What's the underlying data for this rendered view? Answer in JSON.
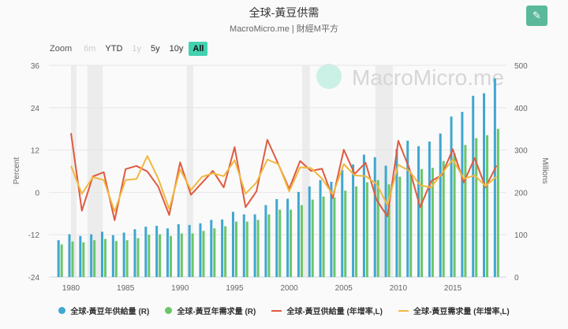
{
  "header": {
    "title": "全球-黃豆供需",
    "subtitle": "MacroMicro.me | 財經M平方",
    "edit_icon": "pencil-icon"
  },
  "zoom": {
    "label": "Zoom",
    "buttons": [
      {
        "label": "6m",
        "disabled": true
      },
      {
        "label": "YTD",
        "disabled": false
      },
      {
        "label": "1y",
        "disabled": true
      },
      {
        "label": "5y",
        "disabled": false
      },
      {
        "label": "10y",
        "disabled": false
      },
      {
        "label": "All",
        "active": true
      }
    ]
  },
  "watermark": "MacroMicro.me",
  "chart_data": {
    "type": "bar+line",
    "title": "全球-黃豆供需",
    "x": [
      1979,
      1980,
      1981,
      1982,
      1983,
      1984,
      1985,
      1986,
      1987,
      1988,
      1989,
      1990,
      1991,
      1992,
      1993,
      1994,
      1995,
      1996,
      1997,
      1998,
      1999,
      2000,
      2001,
      2002,
      2003,
      2004,
      2005,
      2006,
      2007,
      2008,
      2009,
      2010,
      2011,
      2012,
      2013,
      2014,
      2015,
      2016,
      2017,
      2018,
      2019
    ],
    "x_ticks": [
      "1980",
      "1985",
      "1990",
      "1995",
      "2000",
      "2005",
      "2010",
      "2015"
    ],
    "left_axis": {
      "label": "Percent",
      "range": [
        -24,
        36
      ],
      "ticks": [
        "36",
        "24",
        "12",
        "0",
        "-12",
        "-24"
      ]
    },
    "right_axis": {
      "label": "Millions",
      "range": [
        0,
        500
      ],
      "ticks": [
        "500",
        "400",
        "300",
        "200",
        "100",
        "0"
      ]
    },
    "grid": true,
    "legend_position": "bottom",
    "recession_bands": [
      [
        1980.0,
        1980.5
      ],
      [
        1981.5,
        1982.9
      ],
      [
        1990.6,
        1991.2
      ],
      [
        2001.2,
        2001.9
      ],
      [
        2007.9,
        2009.5
      ]
    ],
    "series": [
      {
        "name": "全球-黃豆年供給量 (R)",
        "type": "bar",
        "axis": "right",
        "color": "#3fa7d0",
        "values": [
          87,
          101,
          97,
          101,
          107,
          99,
          105,
          113,
          119,
          121,
          115,
          125,
          123,
          127,
          135,
          136,
          154,
          148,
          148,
          170,
          184,
          185,
          201,
          214,
          229,
          225,
          253,
          266,
          289,
          283,
          263,
          302,
          322,
          309,
          320,
          339,
          379,
          390,
          428,
          434,
          469
        ]
      },
      {
        "name": "全球-黃豆年需求量 (R)",
        "type": "bar",
        "axis": "right",
        "color": "#6cc56a",
        "values": [
          77,
          84,
          82,
          87,
          90,
          85,
          87,
          92,
          100,
          101,
          97,
          103,
          103,
          109,
          115,
          120,
          131,
          131,
          135,
          148,
          159,
          159,
          170,
          183,
          190,
          188,
          204,
          214,
          224,
          229,
          219,
          237,
          247,
          255,
          258,
          274,
          292,
          312,
          328,
          335,
          350
        ]
      },
      {
        "name": "全球-黃豆供給量 (年增率,L)",
        "type": "line",
        "axis": "left",
        "color": "#e05a3f",
        "values": [
          null,
          16.8,
          -5.2,
          4.5,
          5.7,
          -7.9,
          6.6,
          7.5,
          5.9,
          1.6,
          -6.4,
          8.5,
          -0.7,
          2.7,
          6.1,
          1.4,
          12.8,
          -4.2,
          0.3,
          14.9,
          8.0,
          1.0,
          8.9,
          6.1,
          6.7,
          -1.6,
          12.1,
          5.2,
          8.4,
          -2.1,
          -6.8,
          14.6,
          6.9,
          -4.2,
          3.1,
          5.0,
          12.2,
          2.8,
          9.7,
          1.4,
          7.6
        ]
      },
      {
        "name": "全球-黃豆需求量 (年增率,L)",
        "type": "line",
        "axis": "left",
        "color": "#f0b940",
        "values": [
          null,
          7.5,
          -0.4,
          4.3,
          3.5,
          -5.4,
          3.5,
          3.8,
          10.3,
          3.9,
          -4.7,
          6.5,
          0.7,
          4.4,
          5.4,
          4.6,
          9.1,
          -0.4,
          2.8,
          9.3,
          8.0,
          0.3,
          7.1,
          6.9,
          3.9,
          -0.6,
          8.0,
          4.8,
          4.6,
          2.4,
          -3.6,
          7.8,
          6.1,
          2.0,
          1.4,
          5.4,
          9.3,
          3.9,
          4.8,
          1.8,
          4.5
        ]
      }
    ]
  }
}
